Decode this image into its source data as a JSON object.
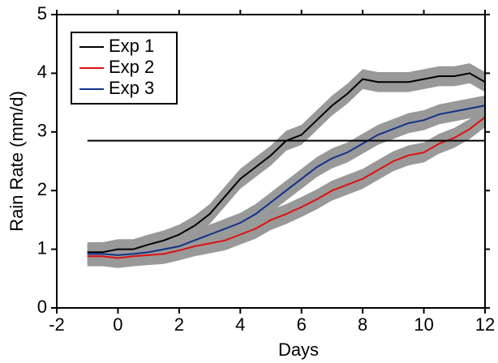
{
  "chart_data": {
    "type": "line",
    "xlabel": "Days",
    "ylabel": "Rain Rate (mm/d)",
    "x": [
      -1,
      -0.5,
      0,
      0.5,
      1,
      1.5,
      2,
      2.5,
      3,
      3.5,
      4,
      4.5,
      5,
      5.5,
      6,
      6.5,
      7,
      7.5,
      8,
      8.5,
      9,
      9.5,
      10,
      10.5,
      11,
      11.5,
      12
    ],
    "series": [
      {
        "name": "Exp 1",
        "color": "#000000",
        "error": 0.17,
        "values": [
          0.95,
          0.95,
          1.0,
          1.0,
          1.08,
          1.15,
          1.25,
          1.4,
          1.6,
          1.9,
          2.2,
          2.4,
          2.6,
          2.85,
          2.95,
          3.2,
          3.45,
          3.65,
          3.9,
          3.85,
          3.85,
          3.85,
          3.9,
          3.95,
          3.95,
          4.0,
          3.85
        ]
      },
      {
        "name": "Exp 2",
        "color": "#dd1111",
        "error": 0.17,
        "values": [
          0.88,
          0.88,
          0.85,
          0.88,
          0.9,
          0.92,
          0.98,
          1.05,
          1.1,
          1.15,
          1.25,
          1.35,
          1.5,
          1.6,
          1.72,
          1.85,
          2.0,
          2.1,
          2.2,
          2.35,
          2.5,
          2.6,
          2.65,
          2.8,
          2.9,
          3.05,
          3.25
        ]
      },
      {
        "name": "Exp 3",
        "color": "#113388",
        "error": 0.17,
        "values": [
          0.92,
          0.92,
          0.9,
          0.92,
          0.95,
          1.0,
          1.05,
          1.15,
          1.25,
          1.35,
          1.45,
          1.6,
          1.8,
          2.0,
          2.2,
          2.4,
          2.55,
          2.65,
          2.8,
          2.95,
          3.05,
          3.15,
          3.2,
          3.3,
          3.35,
          3.4,
          3.45
        ]
      }
    ],
    "hline": 2.85,
    "band_color": "#999999",
    "xlim": [
      -2,
      12
    ],
    "xticks": [
      -2,
      0,
      2,
      4,
      6,
      8,
      10,
      12
    ],
    "ylim": [
      0,
      5
    ],
    "yticks": [
      0,
      1,
      2,
      3,
      4,
      5
    ],
    "legend": "upper left"
  }
}
